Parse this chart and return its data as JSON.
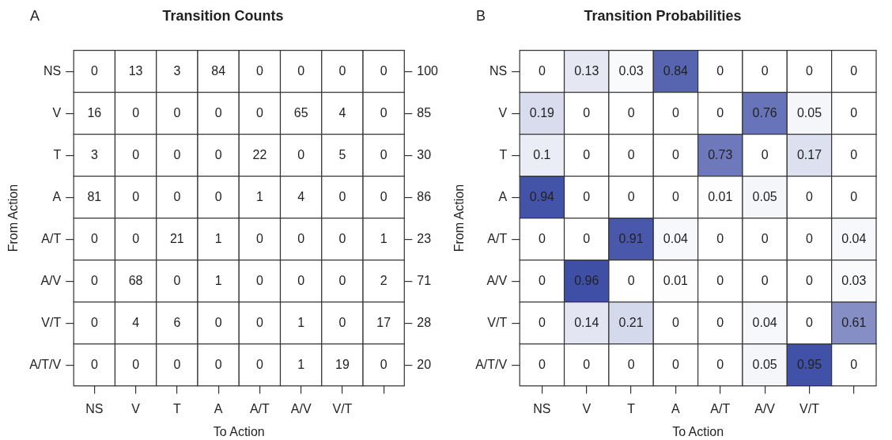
{
  "chart_data": [
    {
      "type": "heatmap",
      "title": "Transition Counts",
      "xlabel": "To Action",
      "ylabel": "From Action",
      "annotations": [
        "A"
      ],
      "color": "#ffffff",
      "data_labels": true,
      "categories": [
        "NS",
        "V",
        "T",
        "A",
        "A/T",
        "A/V",
        "V/T",
        null
      ],
      "y_categories": [
        "NS",
        "V",
        "T",
        "A",
        "A/T",
        "A/V",
        "V/T",
        "A/T/V"
      ],
      "y2_categories": [
        "100",
        "85",
        "30",
        "86",
        "23",
        "71",
        "28",
        "20"
      ],
      "cells": [
        [
          0,
          13,
          3,
          84,
          0,
          0,
          0,
          0
        ],
        [
          16,
          0,
          0,
          0,
          0,
          65,
          4,
          0
        ],
        [
          3,
          0,
          0,
          0,
          22,
          0,
          5,
          0
        ],
        [
          81,
          0,
          0,
          0,
          1,
          4,
          0,
          0
        ],
        [
          0,
          0,
          21,
          1,
          0,
          0,
          0,
          1
        ],
        [
          0,
          68,
          0,
          1,
          0,
          0,
          0,
          2
        ],
        [
          0,
          4,
          6,
          0,
          0,
          1,
          0,
          17
        ],
        [
          0,
          0,
          0,
          0,
          0,
          1,
          19,
          0
        ]
      ]
    },
    {
      "type": "heatmap",
      "title": "Transition Probabilities",
      "xlabel": "To Action",
      "ylabel": "From Action",
      "annotations": [
        "B"
      ],
      "color": "#3f4fa6",
      "data_labels": true,
      "categories": [
        "NS",
        "V",
        "T",
        "A",
        "A/T",
        "A/V",
        "V/T",
        null
      ],
      "y_categories": [
        "NS",
        "V",
        "T",
        "A",
        "A/T",
        "A/V",
        "V/T",
        "A/T/V"
      ],
      "cells": [
        [
          0,
          0.13,
          0.03,
          0.84,
          0,
          0,
          0,
          0
        ],
        [
          0.19,
          0,
          0,
          0,
          0,
          0.76,
          0.05,
          0
        ],
        [
          0.1,
          0,
          0,
          0,
          0.73,
          0,
          0.17,
          0
        ],
        [
          0.94,
          0,
          0,
          0,
          0.01,
          0.05,
          0,
          0
        ],
        [
          0,
          0,
          0.91,
          0.04,
          0,
          0,
          0,
          0.04
        ],
        [
          0,
          0.96,
          0,
          0.01,
          0,
          0,
          0,
          0.03
        ],
        [
          0,
          0.14,
          0.21,
          0,
          0,
          0.04,
          0,
          0.61
        ],
        [
          0,
          0,
          0,
          0,
          0,
          0.05,
          0.95,
          0
        ]
      ]
    }
  ]
}
